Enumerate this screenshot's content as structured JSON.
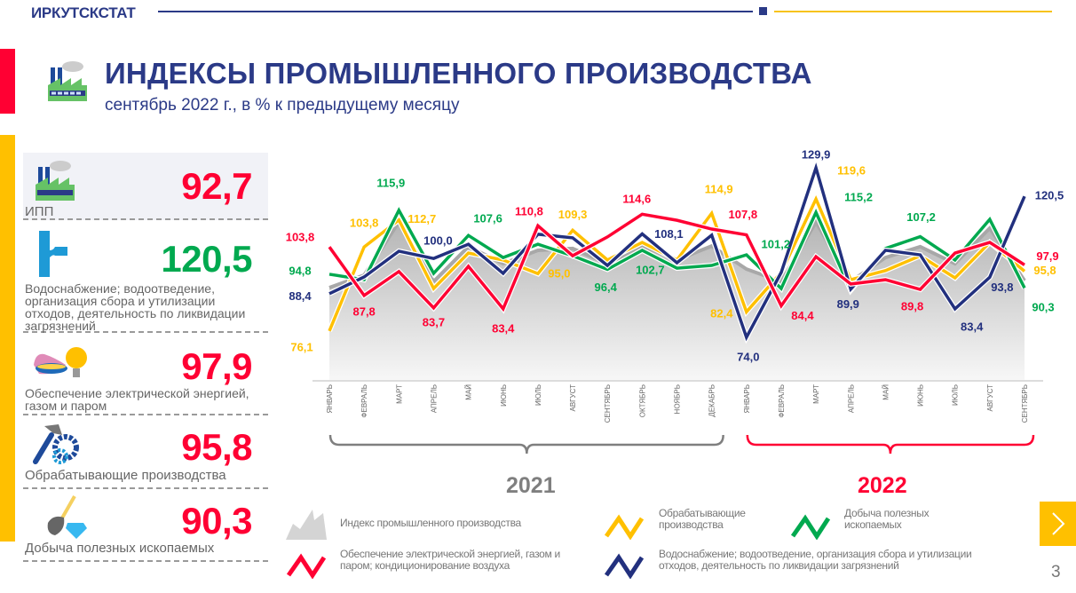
{
  "header": {
    "brand": "ИРКУТСКСТАТ",
    "title": "ИНДЕКСЫ ПРОМЫШЛЕННОГО ПРОИЗВОДСТВА",
    "subtitle": "сентябрь 2022 г., в % к предыдущему месяцу"
  },
  "summary": [
    {
      "label": "ИПП",
      "value": "92,7",
      "color": "#ff0033",
      "icon": "factory-icon"
    },
    {
      "label": "Водоснабжение; водоотведение, организация сбора и утилизации отходов, деятельность по ликвидации загрязнений",
      "value": "120,5",
      "color": "#00a94f",
      "icon": "water-pipe-icon"
    },
    {
      "label": "Обеспечение электрической энергией, газом и паром",
      "value": "97,9",
      "color": "#ff0033",
      "icon": "gas-bulb-icon"
    },
    {
      "label": "Обрабатывающие  производства",
      "value": "95,8",
      "color": "#ff0033",
      "icon": "hammer-gear-icon"
    },
    {
      "label": "Добыча полезных  ископаемых",
      "value": "90,3",
      "color": "#ff0033",
      "icon": "shovel-diamond-icon"
    }
  ],
  "chart_data": {
    "type": "line",
    "categories": [
      "ЯНВАРЬ",
      "ФЕВРАЛЬ",
      "МАРТ",
      "АПРЕЛЬ",
      "МАЙ",
      "ИЮНЬ",
      "ИЮЛЬ",
      "АВГУСТ",
      "СЕНТЯБРЬ",
      "ОКТЯБРЬ",
      "НОЯБРЬ",
      "ДЕКАБРЬ",
      "ЯНВАРЬ",
      "ФЕВРАЛЬ",
      "МАРТ",
      "АПРЕЛЬ",
      "МАЙ",
      "ИЮНЬ",
      "ИЮЛЬ",
      "АВГУСТ",
      "СЕНТЯБРЬ"
    ],
    "year_groups": [
      {
        "label": "2021",
        "from": 0,
        "to": 11,
        "color": "#7f7f7f"
      },
      {
        "label": "2022",
        "from": 12,
        "to": 20,
        "color": "#ff0033"
      }
    ],
    "series": [
      {
        "key": "ipp",
        "name": "Индекс промышленного производства",
        "kind": "area",
        "color": "#b0b0b0",
        "values": [
          90.4,
          94.5,
          112.0,
          92.4,
          103.9,
          98.3,
          102.7,
          103.3,
          98.3,
          104.1,
          99.5,
          104.1,
          96.5,
          92.4,
          112.0,
          92.4,
          100.3,
          103.9,
          98.3,
          110.0,
          92.7
        ],
        "labels": {}
      },
      {
        "key": "manuf",
        "name": "Обрабатывающие производства",
        "kind": "line",
        "color": "#ffc000",
        "values": [
          76.1,
          103.8,
          112.7,
          90.1,
          101.8,
          99.5,
          95.0,
          109.3,
          99.5,
          105.3,
          99.5,
          114.9,
          82.4,
          95.4,
          119.6,
          93.0,
          96.0,
          100.9,
          93.6,
          105.3,
          95.8
        ],
        "labels": {
          "0": "76,1",
          "1": "103,8",
          "2": "112,7",
          "6": "95,0",
          "7": "109,3",
          "11": "114,9",
          "12": "82,4",
          "14": "119,6",
          "20": "95,8"
        }
      },
      {
        "key": "mining",
        "name": "Добыча полезных ископаемых",
        "kind": "line",
        "color": "#00a94f",
        "values": [
          94.8,
          93.0,
          115.9,
          95.1,
          107.6,
          100.3,
          104.7,
          100.9,
          96.4,
          102.7,
          96.8,
          97.7,
          101.2,
          90.1,
          115.2,
          89.5,
          103.3,
          107.2,
          99.5,
          112.9,
          90.3
        ],
        "labels": {
          "0": "94,8",
          "2": "115,9",
          "4": "107,6",
          "8": "96,4",
          "9": "102,7",
          "12": "101,2",
          "14": "115,2",
          "17": "107,2",
          "20": "90,3"
        }
      },
      {
        "key": "water",
        "name": "Водоснабжение; водоотведение, организация сбора и утилизации отходов, деятельность по ликвидации загрязнений",
        "kind": "line",
        "color": "#22307e",
        "values": [
          88.4,
          93.9,
          102.4,
          100.0,
          104.7,
          95.1,
          108.0,
          106.8,
          97.7,
          108.1,
          98.6,
          107.7,
          74.0,
          95.4,
          129.9,
          89.9,
          102.7,
          101.2,
          83.4,
          93.8,
          120.5
        ],
        "labels": {
          "0": "88,4",
          "3": "100,0",
          "9": "108,1",
          "12": "74,0",
          "14": "129,9",
          "15": "89,9",
          "18": "83,4",
          "19": "93,8",
          "20": "120,5"
        }
      },
      {
        "key": "energy",
        "name": "Обеспечение электрической энергией, газом и паром; кондиционирование воздуха",
        "kind": "line",
        "color": "#ff0033",
        "values": [
          103.8,
          87.8,
          95.7,
          83.7,
          97.4,
          83.4,
          110.8,
          100.9,
          107.1,
          114.6,
          112.6,
          109.7,
          107.8,
          84.4,
          100.6,
          91.6,
          93.0,
          89.8,
          101.8,
          105.3,
          97.9
        ],
        "labels": {
          "0": "103,8",
          "1": "87,8",
          "3": "83,7",
          "5": "83,4",
          "6": "110,8",
          "9": "114,6",
          "12": "107,8",
          "13": "84,4",
          "17": "89,8",
          "20": "97,9"
        }
      }
    ],
    "ylim": [
      70,
      135
    ],
    "grid": false,
    "legend_position": "bottom"
  },
  "legend": [
    {
      "key": "ipp",
      "text": "Индекс промышленного производства"
    },
    {
      "key": "manuf",
      "text": "Обрабатывающие производства"
    },
    {
      "key": "mining",
      "text": "Добыча полезных ископаемых"
    },
    {
      "key": "energy",
      "text": "Обеспечение электрической энергией, газом и паром; кондиционирование воздуха"
    },
    {
      "key": "water",
      "text": "Водоснабжение; водоотведение, организация сбора и утилизации отходов, деятельность по ликвидации загрязнений"
    }
  ],
  "nav": {
    "next_icon": "chevron-right-icon",
    "page_number": "3"
  }
}
